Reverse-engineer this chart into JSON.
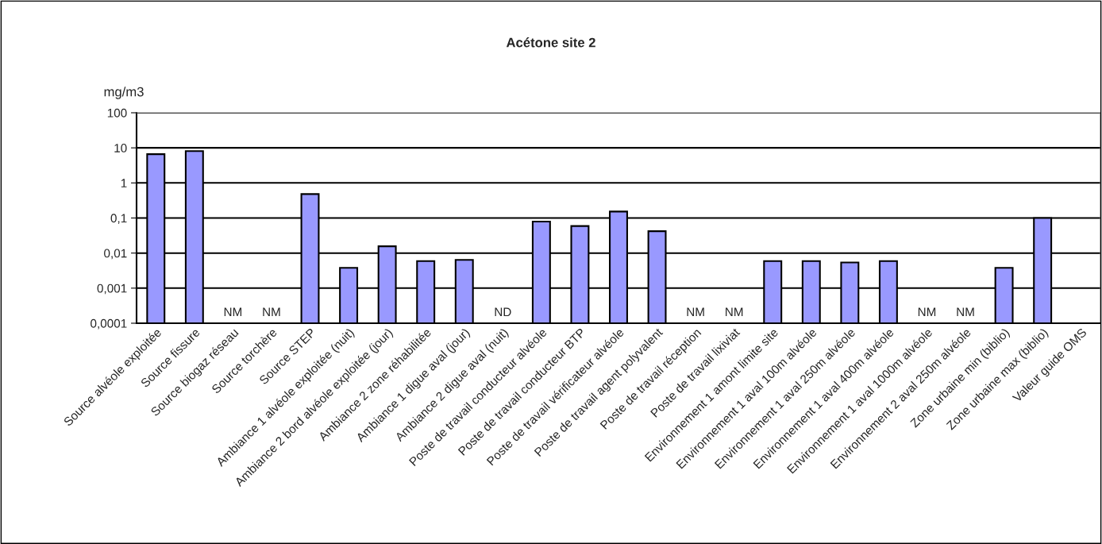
{
  "chart_data": {
    "type": "bar",
    "title": "Acétone site 2",
    "ylabel": "mg/m3",
    "categories": [
      "Source alvéole exploitée",
      "Source fissure",
      "Source biogaz réseau",
      "Source torchère",
      "Source STEP",
      "Ambiance 1 alvéole exploitée (nuit)",
      "Ambiance 2 bord alvéole exploitée (jour)",
      "Ambiance 2 zone réhabilitée",
      "Ambiance 1 digue aval (jour)",
      "Ambiance 2 digue aval (nuit)",
      "Poste de travail conducteur alvéole",
      "Poste de travail conducteur BTP",
      "Poste de travail vérificateur alvéole",
      "Poste de travail agent polyvalent",
      "Poste de travail réception",
      "Poste de travail lixiviat",
      "Environnement 1 amont limite site",
      "Environnement 1 aval 100m alvéole",
      "Environnement 1 aval 250m alvéole",
      "Environnement 1 aval 400m alvéole",
      "Environnement 1 aval 1000m alvéole",
      "Environnement 2 aval 250m alvéole",
      "Zone urbaine min (biblio)",
      "Zone urbaine max (biblio)",
      "Valeur guide OMS"
    ],
    "values": [
      6.6,
      8.1,
      null,
      null,
      0.48,
      0.0038,
      0.0156,
      0.0059,
      0.0064,
      null,
      0.079,
      0.059,
      0.153,
      0.042,
      null,
      null,
      0.0059,
      0.0059,
      0.0054,
      0.0059,
      null,
      null,
      0.0038,
      0.1,
      null
    ],
    "value_labels": [
      null,
      null,
      "NM",
      "NM",
      null,
      null,
      null,
      null,
      null,
      "ND",
      null,
      null,
      null,
      null,
      "NM",
      "NM",
      null,
      null,
      null,
      null,
      "NM",
      "NM",
      null,
      null,
      null
    ],
    "color": "#9999ff",
    "log": "y",
    "ylim": [
      0.0001,
      100
    ],
    "yticks": [
      {
        "value": 0.0001,
        "label": "0,0001"
      },
      {
        "value": 0.001,
        "label": "0,001"
      },
      {
        "value": 0.01,
        "label": "0,01"
      },
      {
        "value": 0.1,
        "label": "0,1"
      },
      1,
      10,
      100
    ],
    "grid": "y",
    "legend": false
  }
}
